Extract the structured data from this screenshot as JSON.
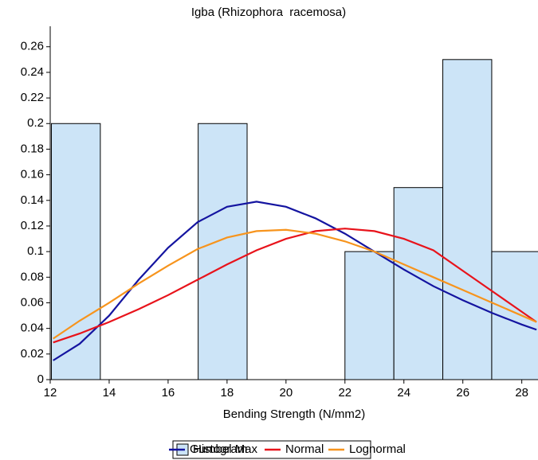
{
  "chart_data": {
    "type": "histogram",
    "title": "Igba (Rhizophora  racemosa)",
    "x_label": "Bending Strength (N/mm2)",
    "bins": [
      12.04,
      13.7,
      15.36,
      17.02,
      18.68,
      20.34,
      22.0,
      23.66,
      25.32,
      26.98,
      28.64
    ],
    "histogram": {
      "name": "Histogram",
      "color": "#cce4f7",
      "values": [
        0.2,
        0,
        0,
        0.2,
        0,
        0,
        0.1,
        0.15,
        0.25,
        0.1
      ]
    },
    "x": [
      12.1,
      13,
      14,
      15,
      16,
      17,
      18,
      19,
      20,
      21,
      22,
      23,
      24,
      25,
      26,
      27,
      28,
      28.5
    ],
    "series": [
      {
        "name": "Gumbel Max",
        "color": "#1414a0",
        "values": [
          0.015,
          0.028,
          0.05,
          0.078,
          0.103,
          0.123,
          0.135,
          0.139,
          0.135,
          0.126,
          0.114,
          0.1,
          0.086,
          0.073,
          0.062,
          0.052,
          0.043,
          0.039
        ]
      },
      {
        "name": "Normal",
        "color": "#e8131b",
        "values": [
          0.029,
          0.036,
          0.045,
          0.055,
          0.066,
          0.078,
          0.09,
          0.101,
          0.11,
          0.116,
          0.118,
          0.116,
          0.11,
          0.101,
          0.085,
          0.069,
          0.053,
          0.045
        ]
      },
      {
        "name": "Lognormal",
        "color": "#f7941d",
        "values": [
          0.032,
          0.046,
          0.06,
          0.075,
          0.089,
          0.102,
          0.111,
          0.116,
          0.117,
          0.114,
          0.108,
          0.1,
          0.09,
          0.08,
          0.07,
          0.06,
          0.05,
          0.045
        ]
      }
    ],
    "xlim": [
      12,
      28.55
    ],
    "ylim": [
      0,
      0.276
    ],
    "xticks": [
      12,
      14,
      16,
      18,
      20,
      22,
      24,
      26,
      28
    ],
    "yticks": [
      0,
      0.02,
      0.04,
      0.06,
      0.08,
      0.1,
      0.12,
      0.14,
      0.16,
      0.18,
      0.2,
      0.22,
      0.24,
      0.26
    ]
  }
}
